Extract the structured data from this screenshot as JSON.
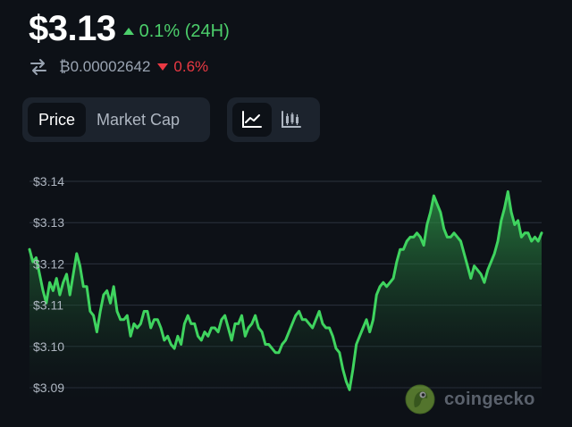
{
  "header": {
    "price": "$3.13",
    "change_24h": "0.1% (24H)",
    "btc_price": "₿0.00002642",
    "btc_change": "0.6%"
  },
  "tabs": [
    {
      "label": "Price",
      "active": true
    },
    {
      "label": "Market Cap",
      "active": false
    }
  ],
  "chart_type_buttons": [
    {
      "icon": "line-chart-icon",
      "active": true
    },
    {
      "icon": "candlestick-chart-icon",
      "active": false
    }
  ],
  "colors": {
    "up": "#4ccf6b",
    "down": "#ea3943",
    "line": "#3fd45f",
    "background": "#0d1117"
  },
  "chart_data": {
    "type": "area",
    "y_ticks": [
      "$3.14",
      "$3.13",
      "$3.12",
      "$3.11",
      "$3.10",
      "$3.09"
    ],
    "ylim": [
      3.0875,
      3.145
    ],
    "grid": true,
    "series": [
      {
        "values": [
          3.1235,
          3.1205,
          3.1215,
          3.1175,
          3.1135,
          3.1105,
          3.1155,
          3.1135,
          3.1165,
          3.1125,
          3.1155,
          3.1175,
          3.1125,
          3.1175,
          3.1225,
          3.1195,
          3.1145,
          3.1145,
          3.1085,
          3.1075,
          3.1035,
          3.1085,
          3.1125,
          3.1135,
          3.1105,
          3.1145,
          3.1085,
          3.1065,
          3.1065,
          3.1075,
          3.1025,
          3.1055,
          3.1045,
          3.1055,
          3.1085,
          3.1085,
          3.1045,
          3.1065,
          3.1065,
          3.1045,
          3.1015,
          3.1025,
          3.1005,
          3.0995,
          3.1025,
          3.1005,
          3.1055,
          3.1075,
          3.1055,
          3.1055,
          3.1025,
          3.1015,
          3.1035,
          3.1025,
          3.1045,
          3.1045,
          3.1035,
          3.1065,
          3.1075,
          3.1045,
          3.1015,
          3.1055,
          3.1055,
          3.1075,
          3.1025,
          3.1045,
          3.1055,
          3.1075,
          3.1045,
          3.1035,
          3.1005,
          3.1005,
          3.0995,
          3.0985,
          3.0985,
          3.1005,
          3.1015,
          3.1035,
          3.1055,
          3.1075,
          3.1085,
          3.1065,
          3.1065,
          3.1055,
          3.1045,
          3.1065,
          3.1085,
          3.1055,
          3.1045,
          3.1045,
          3.1025,
          3.0995,
          3.0985,
          3.0945,
          3.0915,
          3.0895,
          3.0945,
          3.1005,
          3.1025,
          3.1045,
          3.1065,
          3.1035,
          3.1065,
          3.1125,
          3.1145,
          3.1155,
          3.1145,
          3.1155,
          3.1165,
          3.1205,
          3.1235,
          3.1235,
          3.1255,
          3.1265,
          3.1265,
          3.1275,
          3.1265,
          3.1245,
          3.1295,
          3.1325,
          3.1365,
          3.1345,
          3.1325,
          3.1285,
          3.1265,
          3.1265,
          3.1275,
          3.1265,
          3.1255,
          3.1225,
          3.1195,
          3.1165,
          3.1195,
          3.1185,
          3.1175,
          3.1155,
          3.1185,
          3.1205,
          3.1225,
          3.1255,
          3.1305,
          3.1335,
          3.1375,
          3.1325,
          3.1295,
          3.1305,
          3.1265,
          3.1275,
          3.1275,
          3.1255,
          3.1265,
          3.1255,
          3.1275
        ]
      }
    ]
  },
  "logo": {
    "text": "coingecko",
    "icon": "gecko-logo-icon"
  }
}
